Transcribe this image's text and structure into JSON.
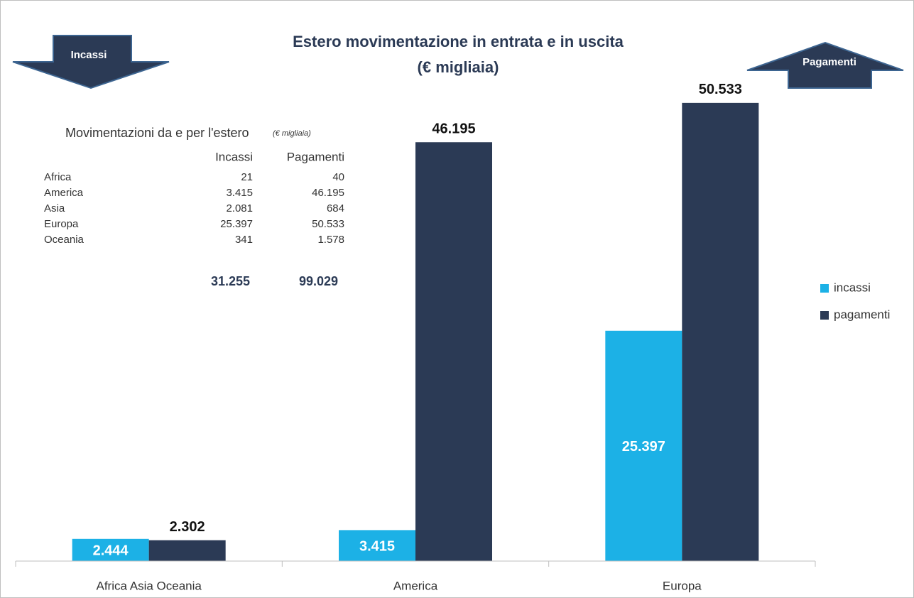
{
  "chart_data": {
    "type": "bar",
    "title": "Estero movimentazione in entrata e in uscita",
    "subtitle": "(€ migliaia)",
    "annotations": [
      "Incassi",
      "Pagamenti"
    ],
    "categories": [
      "Africa Asia Oceania",
      "America",
      "Europa"
    ],
    "series": [
      {
        "name": "incassi",
        "color": "#1cb1e6",
        "values": [
          2444,
          3415,
          25397
        ],
        "value_labels": [
          "2.444",
          "3.415",
          "25.397"
        ]
      },
      {
        "name": "pagamenti",
        "color": "#2b3a55",
        "values": [
          2302,
          46195,
          50533
        ],
        "value_labels": [
          "2.302",
          "46.195",
          "50.533"
        ]
      }
    ],
    "ylim": [
      0,
      60000
    ],
    "legend": "right"
  },
  "table": {
    "title": "Movimentazioni da e per l'estero",
    "note": "(€ migliaia)",
    "columns": [
      "Incassi",
      "Pagamenti"
    ],
    "rows": [
      [
        "Africa",
        "21",
        "40"
      ],
      [
        "America",
        "3.415",
        "46.195"
      ],
      [
        "Asia",
        "2.081",
        "684"
      ],
      [
        "Europa",
        "25.397",
        "50.533"
      ],
      [
        "Oceania",
        "341",
        "1.578"
      ]
    ],
    "totals": [
      "31.255",
      "99.029"
    ]
  }
}
